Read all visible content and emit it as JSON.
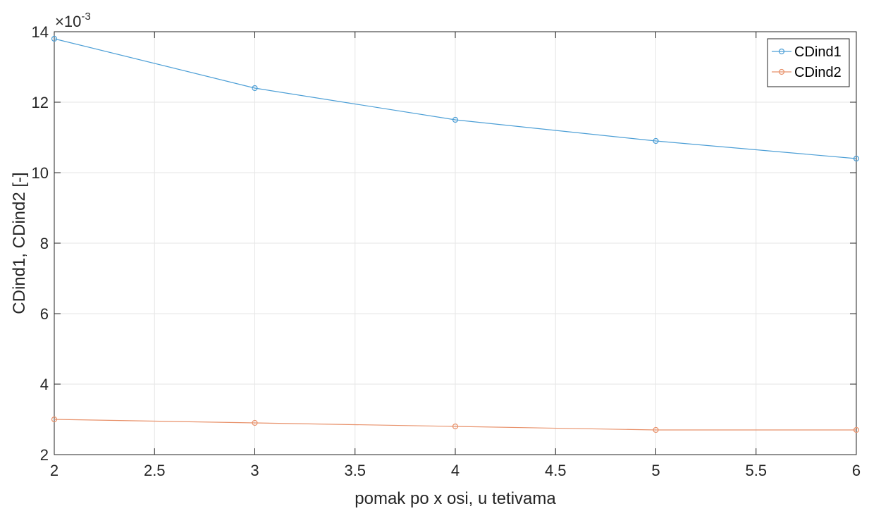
{
  "chart_data": {
    "type": "line",
    "xlabel": "pomak po x osi, u tetivama",
    "ylabel": "CDind1, CDind2 [-]",
    "exponent": {
      "prefix": "×10",
      "power": "-3"
    },
    "xlim": [
      2,
      6
    ],
    "ylim": [
      2,
      14
    ],
    "x_ticks": [
      2,
      2.5,
      3,
      3.5,
      4,
      4.5,
      5,
      5.5,
      6
    ],
    "x_tick_labels": [
      "2",
      "2.5",
      "3",
      "3.5",
      "4",
      "4.5",
      "5",
      "5.5",
      "6"
    ],
    "y_ticks": [
      2,
      4,
      6,
      8,
      10,
      12,
      14
    ],
    "y_tick_labels": [
      "2",
      "4",
      "6",
      "8",
      "10",
      "12",
      "14"
    ],
    "grid": true,
    "legend_position": "top-right",
    "x": [
      2,
      3,
      4,
      5,
      6
    ],
    "series": [
      {
        "name": "CDind1",
        "color": "#4d9fd6",
        "values": [
          13.8,
          12.4,
          11.5,
          10.9,
          10.4
        ]
      },
      {
        "name": "CDind2",
        "color": "#e8916a",
        "values": [
          3.0,
          2.9,
          2.8,
          2.7,
          2.7
        ]
      }
    ]
  }
}
